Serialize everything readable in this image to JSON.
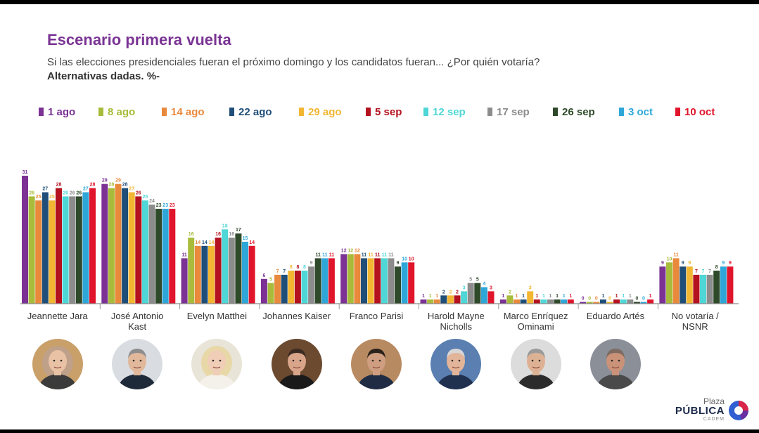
{
  "page": {
    "title": "Escenario primera vuelta",
    "subtitle": "Si las elecciones presidenciales fueran el próximo domingo y los candidatos fueran... ¿Por quién votaría?",
    "note": "Alternativas dadas. %-"
  },
  "logo": {
    "line1": "Plaza",
    "line2": "PÚBLICA",
    "line3": "CADEM"
  },
  "colors": [
    "#7b3294",
    "#a8bb3a",
    "#e8893c",
    "#1f4e79",
    "#f2b632",
    "#b3121e",
    "#4fd6d6",
    "#8c8c8c",
    "#2e4a2a",
    "#2ea7d8",
    "#e0152b"
  ],
  "chart_data": {
    "type": "bar",
    "categories": [
      "Jeannette Jara",
      "José Antonio Kast",
      "Evelyn Matthei",
      "Johannes Kaiser",
      "Franco Parisi",
      "Harold Mayne Nicholls",
      "Marco Enríquez Ominami",
      "Eduardo Artés",
      "No votaría / NSNR"
    ],
    "series": [
      {
        "name": "1 ago",
        "values": [
          31,
          29,
          11,
          6,
          12,
          1,
          1,
          0,
          9
        ]
      },
      {
        "name": "8 ago",
        "values": [
          26,
          28,
          16,
          5,
          12,
          1,
          2,
          0,
          10
        ]
      },
      {
        "name": "14 ago",
        "values": [
          25,
          29,
          14,
          7,
          12,
          1,
          1,
          0,
          11
        ]
      },
      {
        "name": "22 ago",
        "values": [
          27,
          28,
          14,
          7,
          11,
          2,
          1,
          1,
          9
        ]
      },
      {
        "name": "29 ago",
        "values": [
          25,
          27,
          14,
          8,
          11,
          2,
          3,
          0,
          9
        ]
      },
      {
        "name": "5 sep",
        "values": [
          28,
          26,
          16,
          8,
          11,
          2,
          1,
          1,
          7
        ]
      },
      {
        "name": "12 sep",
        "values": [
          26,
          25,
          18,
          8,
          11,
          3,
          1,
          1,
          7
        ]
      },
      {
        "name": "17 sep",
        "values": [
          26,
          24,
          16,
          9,
          11,
          5,
          1,
          1,
          7
        ]
      },
      {
        "name": "26 sep",
        "values": [
          26,
          23,
          17,
          11,
          9,
          5,
          1,
          0,
          8
        ]
      },
      {
        "name": "3 oct",
        "values": [
          27,
          23,
          15,
          11,
          10,
          4,
          1,
          0,
          9
        ]
      },
      {
        "name": "10 oct",
        "values": [
          28,
          23,
          14,
          11,
          10,
          3,
          1,
          1,
          9
        ]
      }
    ],
    "ylim": [
      0,
      31
    ],
    "legend": "top"
  },
  "candidates": [
    {
      "label": "Jeannette Jara",
      "avatar_icon": "woman-portrait-icon",
      "skin": "#e9c2a5",
      "hair": "#bfa089",
      "bg": "#c9a06a",
      "cloth": "#3b3b3b"
    },
    {
      "label": "José Antonio Kast",
      "avatar_icon": "man-portrait-icon",
      "skin": "#e1b89b",
      "hair": "#8d8d8d",
      "bg": "#d9dde2",
      "cloth": "#1e2a3a"
    },
    {
      "label": "Evelyn Matthei",
      "avatar_icon": "woman-portrait-icon",
      "skin": "#f0cdb6",
      "hair": "#e8d8a8",
      "bg": "#e9e4d8",
      "cloth": "#f4f1ea"
    },
    {
      "label": "Johannes Kaiser",
      "avatar_icon": "man-portrait-icon",
      "skin": "#d9a58a",
      "hair": "#3b2a22",
      "bg": "#6b4a30",
      "cloth": "#1a1a1a"
    },
    {
      "label": "Franco Parisi",
      "avatar_icon": "man-portrait-icon",
      "skin": "#cf9e80",
      "hair": "#2a211c",
      "bg": "#b88a62",
      "cloth": "#1f2c44"
    },
    {
      "label": "Harold Mayne Nicholls",
      "avatar_icon": "man-portrait-icon",
      "skin": "#e2b59a",
      "hair": "#d7d7d7",
      "bg": "#5a7fb0",
      "cloth": "#20304f"
    },
    {
      "label": "Marco Enríquez Ominami",
      "avatar_icon": "man-portrait-icon",
      "skin": "#ddb194",
      "hair": "#9a9a9a",
      "bg": "#dcdcdc",
      "cloth": "#2b2b2b"
    },
    {
      "label": "Eduardo Artés",
      "avatar_icon": "man-portrait-icon",
      "skin": "#c99279",
      "hair": "#7d6a60",
      "bg": "#8a8f98",
      "cloth": "#4a4a4a"
    }
  ]
}
